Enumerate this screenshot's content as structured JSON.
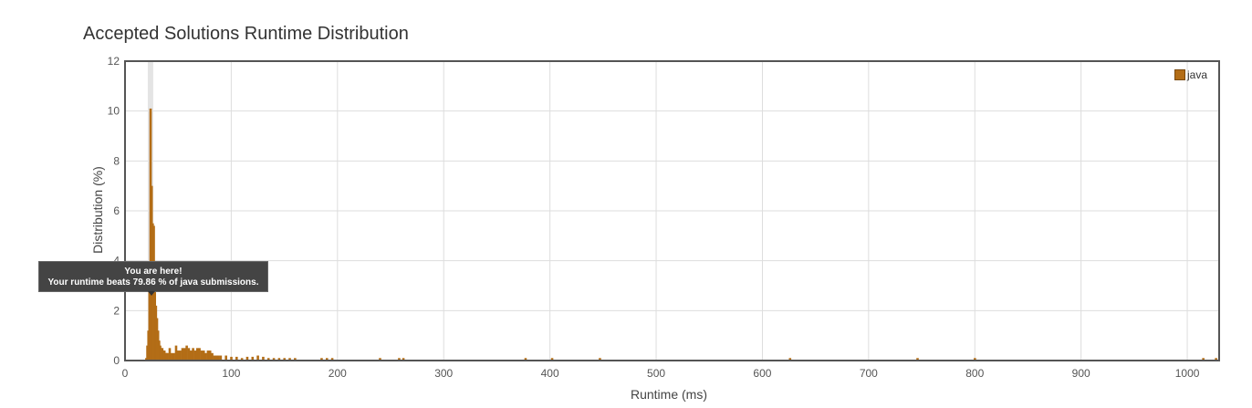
{
  "chart_data": {
    "type": "bar",
    "title": "Accepted Solutions Runtime Distribution",
    "xlabel": "Runtime (ms)",
    "ylabel": "Distribution (%)",
    "xlim": [
      0,
      1030
    ],
    "ylim": [
      0,
      12
    ],
    "x_ticks": [
      "0",
      "100",
      "200",
      "300",
      "400",
      "500",
      "600",
      "700",
      "800",
      "900",
      "1000"
    ],
    "y_ticks": [
      "0",
      "2",
      "4",
      "6",
      "8",
      "10",
      "12"
    ],
    "grid": true,
    "legend_position": "top-right",
    "highlight_x": 24,
    "series": [
      {
        "name": "java",
        "color": "#b36d16",
        "x": [
          20,
          21,
          22,
          23,
          24,
          25,
          26,
          27,
          28,
          29,
          30,
          31,
          32,
          33,
          34,
          35,
          36,
          37,
          38,
          39,
          40,
          42,
          44,
          46,
          48,
          50,
          52,
          54,
          56,
          58,
          60,
          62,
          64,
          66,
          68,
          70,
          72,
          74,
          76,
          78,
          80,
          82,
          84,
          86,
          88,
          90,
          95,
          100,
          105,
          110,
          115,
          120,
          125,
          130,
          135,
          140,
          145,
          150,
          155,
          160,
          185,
          190,
          195,
          240,
          258,
          262,
          377,
          402,
          447,
          626,
          746,
          800,
          1015,
          1027
        ],
        "values": [
          0.1,
          0.6,
          1.2,
          2.8,
          10.1,
          7.0,
          5.5,
          5.4,
          2.9,
          2.2,
          1.7,
          1.2,
          0.8,
          0.6,
          0.5,
          0.5,
          0.4,
          0.4,
          0.3,
          0.3,
          0.3,
          0.5,
          0.3,
          0.3,
          0.6,
          0.4,
          0.4,
          0.5,
          0.5,
          0.6,
          0.5,
          0.4,
          0.5,
          0.4,
          0.5,
          0.5,
          0.4,
          0.4,
          0.3,
          0.4,
          0.4,
          0.3,
          0.2,
          0.2,
          0.2,
          0.2,
          0.2,
          0.15,
          0.15,
          0.1,
          0.15,
          0.15,
          0.2,
          0.15,
          0.1,
          0.1,
          0.1,
          0.1,
          0.1,
          0.1,
          0.1,
          0.1,
          0.1,
          0.1,
          0.1,
          0.1,
          0.1,
          0.1,
          0.1,
          0.1,
          0.1,
          0.1,
          0.1,
          0.1
        ]
      }
    ],
    "tooltip": {
      "line1": "You are here!",
      "line2": "Your runtime beats 79.86 % of java submissions."
    }
  }
}
